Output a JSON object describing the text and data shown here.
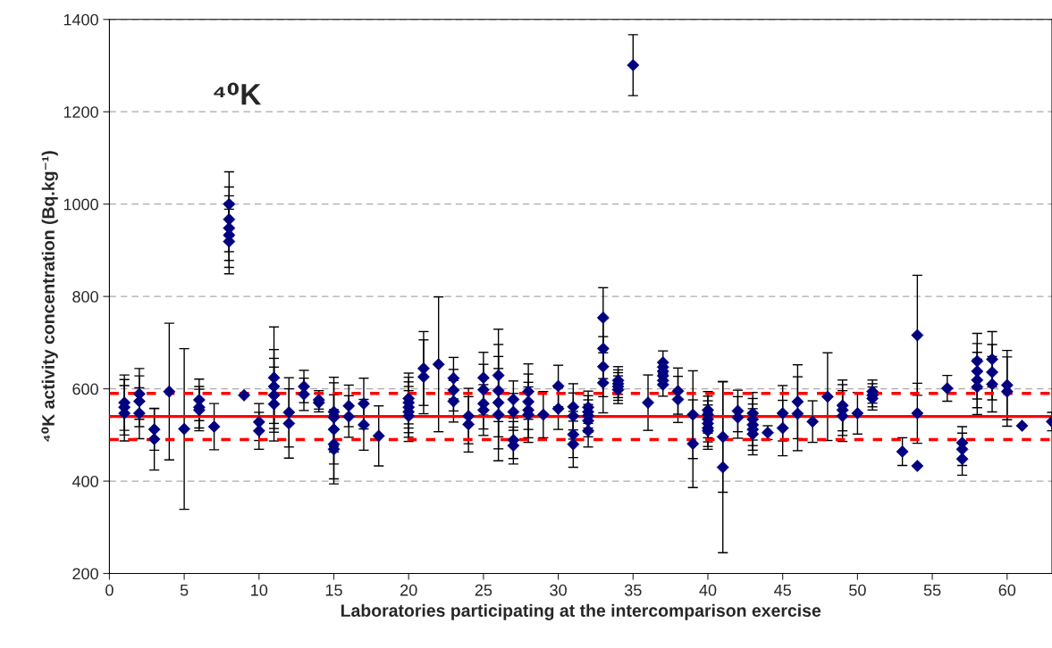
{
  "chart_data": {
    "type": "scatter",
    "xlabel": "Laboratories participating at the intercomparison exercise",
    "ylabel": "⁴⁰K activity concentration (Bq.kg⁻¹)",
    "annotations": [
      "⁴⁰K"
    ],
    "xlim": [
      0,
      63
    ],
    "xticks": [
      0,
      5,
      10,
      15,
      20,
      25,
      30,
      35,
      40,
      45,
      50,
      55,
      60
    ],
    "ylim": [
      200,
      1400
    ],
    "yticks": [
      200,
      400,
      600,
      800,
      1000,
      1200,
      1400
    ],
    "grid": "y",
    "marker": "diamond",
    "legend": false,
    "series": [
      {
        "color": "#000080",
        "x": [
          1,
          1,
          1,
          2,
          2,
          2,
          3,
          3,
          4,
          5,
          6,
          6,
          6,
          7,
          8,
          8,
          8,
          8,
          8,
          9,
          10,
          10,
          11,
          11,
          11,
          11,
          12,
          12,
          13,
          13,
          14,
          14,
          15,
          15,
          15,
          15,
          15,
          16,
          16,
          17,
          17,
          18,
          20,
          20,
          20,
          20,
          20,
          21,
          21,
          22,
          23,
          23,
          23,
          24,
          24,
          25,
          25,
          25,
          25,
          26,
          26,
          26,
          26,
          27,
          27,
          27,
          27,
          28,
          28,
          28,
          28,
          29,
          30,
          30,
          31,
          31,
          31,
          31,
          32,
          32,
          32,
          32,
          32,
          33,
          33,
          33,
          33,
          34,
          34,
          34,
          34,
          35,
          36,
          37,
          37,
          37,
          37,
          37,
          37,
          38,
          38,
          39,
          39,
          40,
          40,
          40,
          40,
          40,
          40,
          41,
          41,
          42,
          42,
          43,
          43,
          43,
          43,
          43,
          44,
          45,
          45,
          46,
          46,
          47,
          48,
          49,
          49,
          49,
          50,
          51,
          51,
          51,
          53,
          54,
          54,
          54,
          56,
          57,
          57,
          57,
          58,
          58,
          58,
          58,
          59,
          59,
          59,
          60,
          60,
          61,
          63
        ],
        "values": [
          570,
          560,
          547,
          589,
          573,
          547,
          512,
          491,
          594,
          513,
          576,
          560,
          554,
          518,
          1000,
          967,
          948,
          933,
          919,
          586,
          528,
          509,
          624,
          605,
          586,
          567,
          549,
          525,
          605,
          588,
          576,
          570,
          550,
          538,
          512,
          480,
          469,
          563,
          540,
          568,
          522,
          498,
          579,
          570,
          560,
          550,
          541,
          644,
          626,
          653,
          623,
          597,
          573,
          541,
          523,
          624,
          598,
          568,
          554,
          629,
          596,
          570,
          544,
          577,
          550,
          489,
          477,
          594,
          572,
          554,
          544,
          544,
          606,
          557,
          561,
          541,
          501,
          480,
          560,
          550,
          541,
          531,
          509,
          754,
          687,
          648,
          613,
          618,
          611,
          605,
          598,
          1301,
          570,
          657,
          647,
          638,
          628,
          618,
          609,
          595,
          577,
          544,
          481,
          554,
          544,
          534,
          525,
          515,
          509,
          496,
          430,
          552,
          538,
          547,
          534,
          522,
          512,
          502,
          505,
          547,
          515,
          572,
          546,
          529,
          583,
          564,
          554,
          541,
          547,
          594,
          586,
          579,
          464,
          716,
          547,
          433,
          601,
          483,
          469,
          448,
          660,
          638,
          619,
          604,
          664,
          636,
          610,
          608,
          594,
          520,
          529
        ],
        "errors": [
          60,
          60,
          60,
          55,
          55,
          55,
          45,
          67,
          148,
          174,
          45,
          45,
          45,
          50,
          70,
          70,
          70,
          70,
          70,
          null,
          40,
          40,
          110,
          80,
          80,
          80,
          75,
          75,
          35,
          35,
          20,
          20,
          75,
          75,
          75,
          75,
          75,
          45,
          45,
          55,
          55,
          65,
          55,
          55,
          55,
          55,
          55,
          80,
          80,
          146,
          45,
          45,
          45,
          60,
          60,
          55,
          55,
          55,
          55,
          100,
          100,
          100,
          100,
          40,
          40,
          40,
          40,
          60,
          60,
          60,
          60,
          50,
          45,
          45,
          50,
          50,
          50,
          50,
          35,
          35,
          35,
          35,
          35,
          65,
          65,
          65,
          65,
          30,
          30,
          30,
          30,
          66,
          60,
          25,
          null,
          null,
          null,
          null,
          25,
          50,
          50,
          95,
          95,
          40,
          40,
          40,
          40,
          40,
          40,
          120,
          185,
          45,
          45,
          45,
          45,
          45,
          45,
          45,
          15,
          60,
          60,
          80,
          80,
          45,
          95,
          55,
          55,
          55,
          45,
          25,
          25,
          25,
          30,
          130,
          65,
          null,
          28,
          35,
          35,
          35,
          60,
          60,
          60,
          60,
          60,
          60,
          60,
          75,
          75,
          null,
          20
        ]
      }
    ],
    "ref_lines": [
      {
        "axis": "y",
        "value": 540,
        "color": "#ff0000",
        "line_style": "solid"
      },
      {
        "axis": "y",
        "value": 590,
        "color": "#ff0000",
        "line_style": "dashed"
      },
      {
        "axis": "y",
        "value": 490,
        "color": "#ff0000",
        "line_style": "dashed"
      }
    ]
  }
}
